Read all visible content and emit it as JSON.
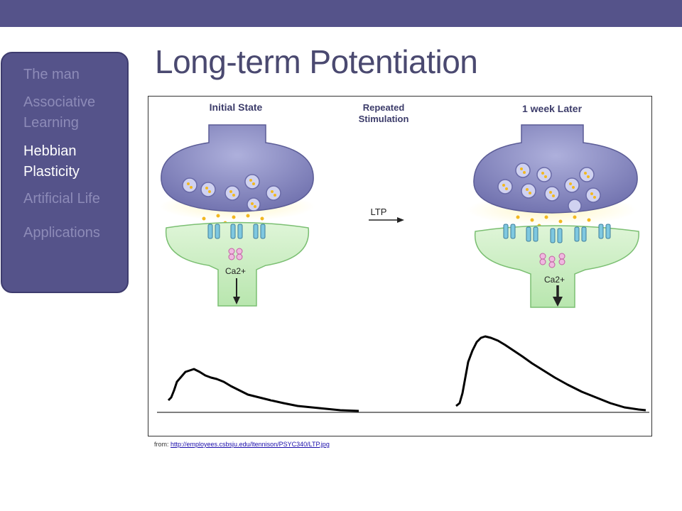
{
  "slide": {
    "title": "Long-term Potentiation"
  },
  "nav": {
    "items": [
      {
        "label": "The man",
        "active": false
      },
      {
        "label": "Associative Learning",
        "active": false
      },
      {
        "label": "Hebbian Plasticity",
        "active": true
      },
      {
        "label": "Artificial Life",
        "active": false
      },
      {
        "label": "Applications",
        "active": false
      }
    ]
  },
  "figure": {
    "initial_state_label": "Initial State",
    "repeated_label_line1": "Repeated",
    "repeated_label_line2": "Stimulation",
    "later_label": "1 week Later",
    "ltp_label": "LTP",
    "ca_label": "Ca2+"
  },
  "credit": {
    "prefix": "from: ",
    "link_text": "http://employees.csbsju.edu/ltennison/PSYC340/LTP.jpg"
  },
  "colors": {
    "band": "#55538a",
    "presynaptic": "#8e8fc8",
    "postsynaptic": "#c8ecc0",
    "trace": "#000000"
  }
}
